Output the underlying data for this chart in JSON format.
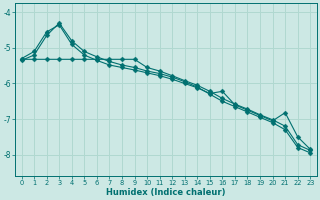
{
  "xlabel": "Humidex (Indice chaleur)",
  "background_color": "#cce8e4",
  "grid_color": "#b0d8d0",
  "line_color": "#007070",
  "xlim": [
    -0.5,
    23.5
  ],
  "ylim": [
    -8.6,
    -3.75
  ],
  "yticks": [
    -8,
    -7,
    -6,
    -5,
    -4
  ],
  "xticks": [
    0,
    1,
    2,
    3,
    4,
    5,
    6,
    7,
    8,
    9,
    10,
    11,
    12,
    13,
    14,
    15,
    16,
    17,
    18,
    19,
    20,
    21,
    22,
    23
  ],
  "line1_x": [
    0,
    1,
    2,
    3,
    4,
    5,
    6,
    7,
    8,
    9,
    10,
    11,
    12,
    13,
    14,
    15,
    16,
    17,
    18,
    19,
    20,
    21,
    22,
    23
  ],
  "line1_y": [
    -5.35,
    -5.2,
    -4.65,
    -4.3,
    -4.8,
    -5.1,
    -5.25,
    -5.38,
    -5.48,
    -5.55,
    -5.65,
    -5.72,
    -5.82,
    -5.95,
    -6.1,
    -6.3,
    -6.5,
    -6.65,
    -6.8,
    -6.95,
    -7.1,
    -7.3,
    -7.8,
    -7.95
  ],
  "line2_x": [
    0,
    1,
    2,
    3,
    4,
    5,
    6,
    7,
    8,
    9,
    10,
    11,
    12,
    13,
    14,
    15,
    16,
    17,
    18,
    19,
    20,
    21,
    22,
    23
  ],
  "line2_y": [
    -5.3,
    -5.1,
    -4.55,
    -4.35,
    -4.9,
    -5.2,
    -5.35,
    -5.48,
    -5.55,
    -5.62,
    -5.7,
    -5.78,
    -5.88,
    -6.0,
    -6.12,
    -6.28,
    -6.22,
    -6.6,
    -6.75,
    -6.9,
    -7.05,
    -6.82,
    -7.5,
    -7.85
  ],
  "line3_x": [
    0,
    1,
    2,
    3,
    4,
    5,
    6,
    7,
    8,
    9,
    10,
    11,
    12,
    13,
    14,
    15,
    16,
    17,
    18,
    19,
    20,
    21,
    22,
    23
  ],
  "line3_y": [
    -5.32,
    -5.32,
    -5.32,
    -5.32,
    -5.32,
    -5.32,
    -5.32,
    -5.32,
    -5.32,
    -5.32,
    -5.55,
    -5.65,
    -5.78,
    -5.92,
    -6.05,
    -6.22,
    -6.42,
    -6.58,
    -6.72,
    -6.88,
    -7.02,
    -7.2,
    -7.72,
    -7.88
  ]
}
